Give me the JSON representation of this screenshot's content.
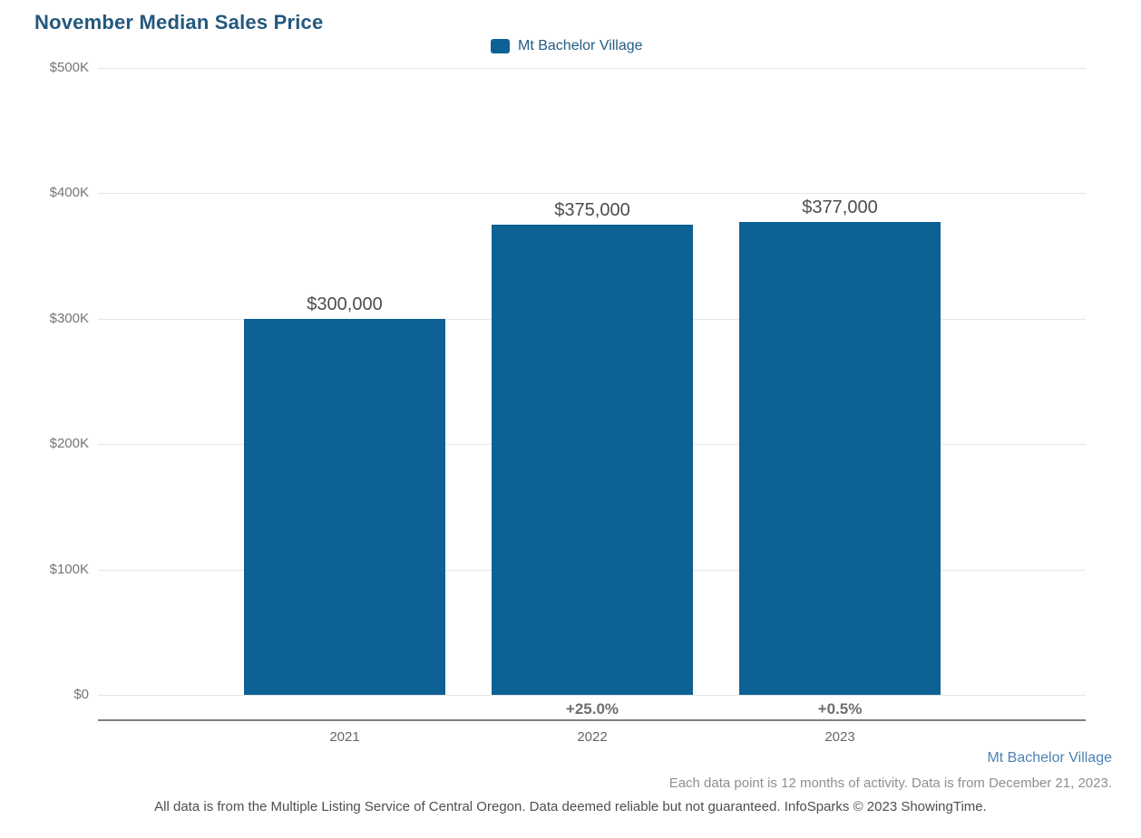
{
  "title": "November Median Sales Price",
  "legend": {
    "label": "Mt Bachelor Village"
  },
  "chart_data": {
    "type": "bar",
    "title": "November Median Sales Price",
    "categories": [
      "2021",
      "2022",
      "2023"
    ],
    "series": [
      {
        "name": "Mt Bachelor Village",
        "values": [
          300000,
          375000,
          377000
        ]
      }
    ],
    "bar_value_labels": [
      "$300,000",
      "$375,000",
      "$377,000"
    ],
    "pct_change_labels": [
      "",
      "+25.0%",
      "+0.5%"
    ],
    "xlabel": "",
    "ylabel": "",
    "ylim": [
      0,
      500000
    ],
    "yticks": {
      "values": [
        0,
        100000,
        200000,
        300000,
        400000,
        500000
      ],
      "labels": [
        "$0",
        "$100K",
        "$200K",
        "$300K",
        "$400K",
        "$500K"
      ]
    },
    "grid": true,
    "legend_position": "top-center",
    "bar_color": "#0e6195"
  },
  "footer": {
    "series_note": "Mt Bachelor Village",
    "activity_note": "Each data point is 12 months of activity. Data is from December 21, 2023.",
    "disclaimer": "All data is from the Multiple Listing Service of Central Oregon. Data deemed reliable but not guaranteed. InfoSparks © 2023 ShowingTime."
  },
  "colors": {
    "title": "#24587e",
    "legend_text": "#235d84",
    "bar": "#0e6195",
    "footer_series": "#4f80b2",
    "gridline": "#e6e6e6",
    "axis_line": "#7f7f7f"
  }
}
